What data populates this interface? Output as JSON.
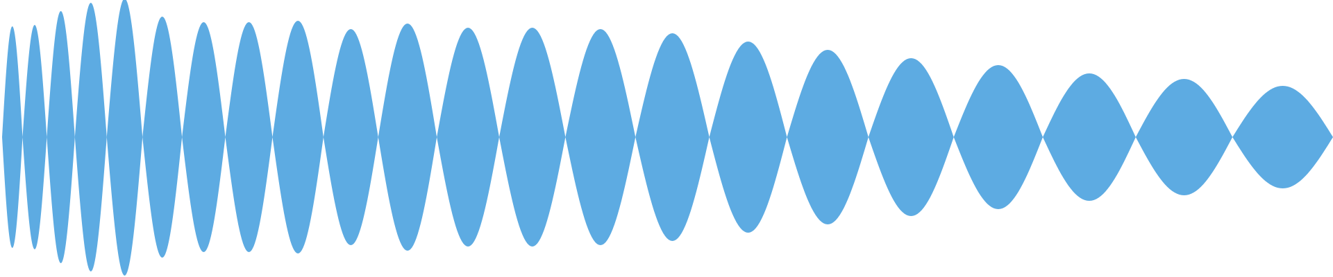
{
  "waveform": {
    "color": "#5dabe2",
    "background": "#ffffff",
    "lobe_count": 22,
    "lobe_amplitudes": [
      0.8,
      0.81,
      0.91,
      0.97,
      1.0,
      0.87,
      0.83,
      0.83,
      0.84,
      0.78,
      0.82,
      0.79,
      0.79,
      0.78,
      0.75,
      0.69,
      0.63,
      0.57,
      0.52,
      0.46,
      0.42,
      0.37
    ]
  }
}
